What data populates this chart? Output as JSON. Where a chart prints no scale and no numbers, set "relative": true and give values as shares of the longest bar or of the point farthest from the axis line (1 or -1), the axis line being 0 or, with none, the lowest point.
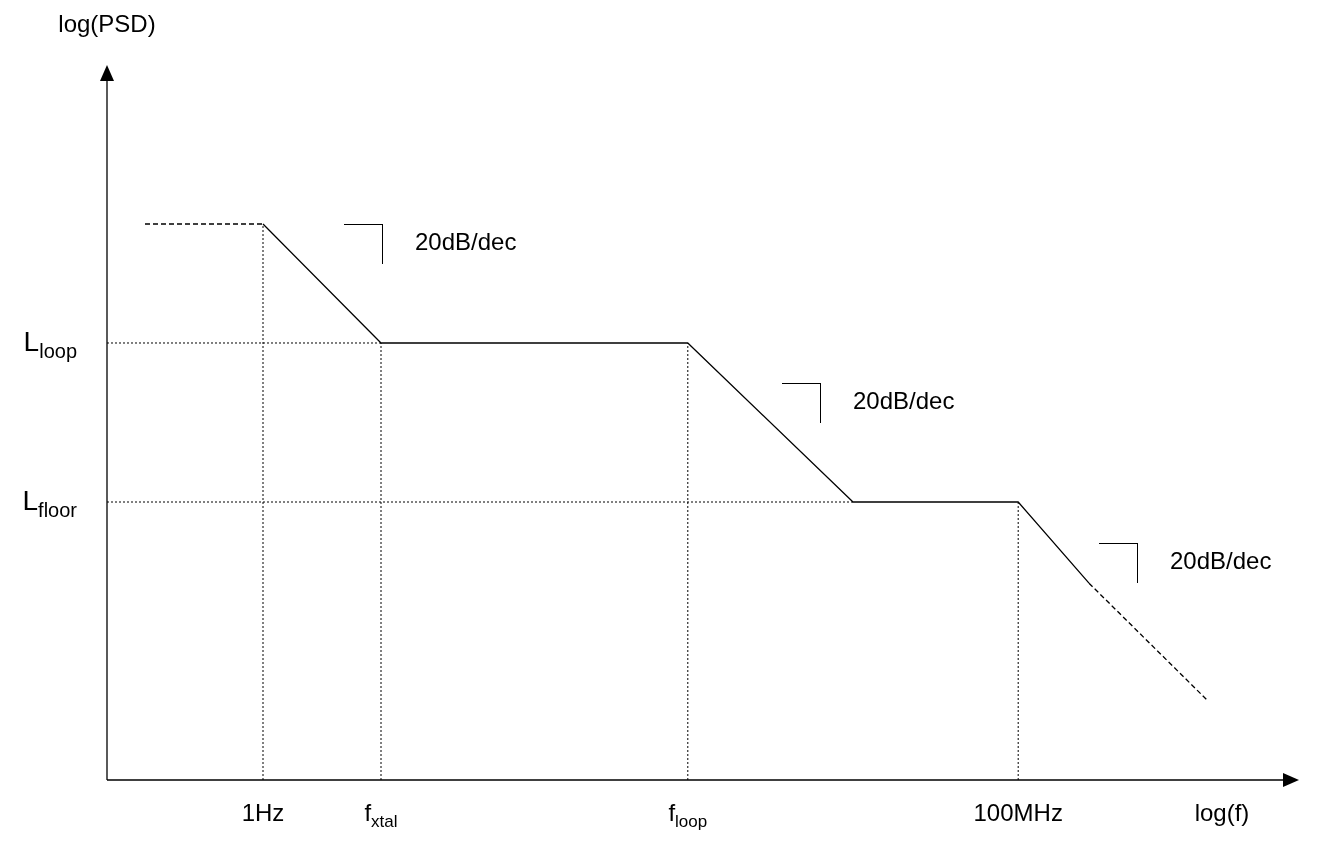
{
  "chart_data": {
    "type": "line",
    "relative": true,
    "marker": "none",
    "legend": false,
    "xlabel": "log(f)",
    "categories": [
      null,
      null,
      null,
      null,
      null,
      "1Hz",
      null,
      null,
      null,
      null,
      "f$_{xtal}$",
      null,
      null,
      null,
      null,
      null,
      null,
      null,
      null,
      null,
      null,
      null,
      null,
      "f$_{loop}$",
      null,
      null,
      null,
      null,
      null,
      null,
      null,
      null,
      null,
      null,
      null,
      null,
      null,
      "100MHz",
      null,
      null,
      null,
      null,
      null,
      null,
      null,
      null
    ],
    "series": [
      {
        "color": "#000000",
        "line_style": "dashed",
        "values": [
          1,
          null,
          null,
          null,
          null,
          1,
          null,
          null,
          null,
          null,
          null,
          null,
          null,
          null,
          null,
          null,
          null,
          null,
          null,
          null,
          null,
          null,
          null,
          null,
          null,
          null,
          null,
          null,
          null,
          null,
          null,
          null,
          null,
          null,
          null,
          null,
          null,
          null,
          null,
          null,
          null,
          null,
          null,
          null,
          null,
          null
        ]
      },
      {
        "color": "#000000",
        "line_style": "solid",
        "values": [
          null,
          null,
          null,
          null,
          null,
          1,
          null,
          null,
          null,
          null,
          0.786,
          null,
          null,
          null,
          null,
          null,
          null,
          null,
          null,
          null,
          null,
          null,
          null,
          0.786,
          null,
          null,
          null,
          null,
          null,
          null,
          0.5,
          null,
          null,
          null,
          null,
          null,
          null,
          0.5,
          null,
          null,
          0.354,
          null,
          null,
          null,
          null,
          null
        ]
      },
      {
        "color": "#000000",
        "line_style": "dashed",
        "values": [
          null,
          null,
          null,
          null,
          null,
          null,
          null,
          null,
          null,
          null,
          null,
          null,
          null,
          null,
          null,
          null,
          null,
          null,
          null,
          null,
          null,
          null,
          null,
          null,
          null,
          null,
          null,
          null,
          null,
          null,
          null,
          null,
          null,
          null,
          null,
          null,
          null,
          null,
          null,
          null,
          0.354,
          null,
          null,
          null,
          null,
          0.144
        ]
      }
    ],
    "ref_lines": [
      {
        "axis": "x",
        "value": "1Hz",
        "line_style": "dotted"
      },
      {
        "axis": "x",
        "value": "f$_{xtal}$",
        "line_style": "dotted"
      },
      {
        "axis": "x",
        "value": "f$_{loop}$",
        "line_style": "dotted"
      },
      {
        "axis": "x",
        "value": "100MHz",
        "line_style": "dotted"
      },
      {
        "axis": "y",
        "value": 0.786,
        "label": "L$_{loop}$",
        "line_style": "dotted"
      },
      {
        "axis": "y",
        "value": 0.5,
        "label": "L$_{floor}$",
        "line_style": "dotted"
      }
    ],
    "annotations": [
      "log(PSD)",
      "20dB/dec",
      "20dB/dec",
      "20dB/dec"
    ]
  }
}
